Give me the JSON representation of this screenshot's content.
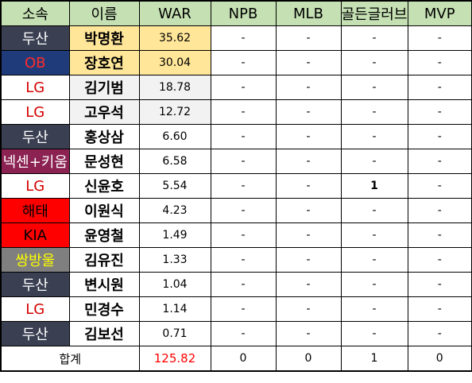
{
  "headers": [
    "소속",
    "이름",
    "WAR",
    "NPB",
    "MLB",
    "골든글러브",
    "MVP"
  ],
  "colors": {
    "header_bg": "#c5e0b3",
    "war_top_bg": "#ffe699",
    "war_light_bg": "#f2f2f2"
  },
  "rows": [
    {
      "team": "두산",
      "team_bg": "#3a3f52",
      "team_color": "#ffffff",
      "name": "박명환",
      "name_bg": "#ffe699",
      "war": "35.62",
      "war_bg": "#ffe699",
      "npb": "-",
      "mlb": "-",
      "gg": "-",
      "mvp": "-"
    },
    {
      "team": "OB",
      "team_bg": "#1f3b7a",
      "team_color": "#ff2b2b",
      "name": "장호연",
      "name_bg": "#ffe699",
      "war": "30.04",
      "war_bg": "#ffe699",
      "npb": "-",
      "mlb": "-",
      "gg": "-",
      "mvp": "-"
    },
    {
      "team": "LG",
      "team_bg": "#ffffff",
      "team_color": "#d40000",
      "name": "김기범",
      "name_bg": "#f2f2f2",
      "war": "18.78",
      "war_bg": "#f2f2f2",
      "npb": "-",
      "mlb": "-",
      "gg": "-",
      "mvp": "-"
    },
    {
      "team": "LG",
      "team_bg": "#ffffff",
      "team_color": "#d40000",
      "name": "고우석",
      "name_bg": "#f2f2f2",
      "war": "12.72",
      "war_bg": "#f2f2f2",
      "npb": "-",
      "mlb": "-",
      "gg": "-",
      "mvp": "-"
    },
    {
      "team": "두산",
      "team_bg": "#3a3f52",
      "team_color": "#ffffff",
      "name": "홍상삼",
      "name_bg": "#ffffff",
      "war": "6.60",
      "war_bg": "#ffffff",
      "npb": "-",
      "mlb": "-",
      "gg": "-",
      "mvp": "-"
    },
    {
      "team": "넥센+키움",
      "team_bg": "#8b2252",
      "team_color": "#ffffff",
      "name": "문성현",
      "name_bg": "#ffffff",
      "war": "6.58",
      "war_bg": "#ffffff",
      "npb": "-",
      "mlb": "-",
      "gg": "-",
      "mvp": "-"
    },
    {
      "team": "LG",
      "team_bg": "#ffffff",
      "team_color": "#d40000",
      "name": "신윤호",
      "name_bg": "#ffffff",
      "war": "5.54",
      "war_bg": "#ffffff",
      "npb": "-",
      "mlb": "-",
      "gg": "1",
      "gg_bold": true,
      "mvp": "-"
    },
    {
      "team": "해태",
      "team_bg": "#ff0000",
      "team_color": "#000000",
      "name": "이원식",
      "name_bg": "#ffffff",
      "war": "4.23",
      "war_bg": "#ffffff",
      "npb": "-",
      "mlb": "-",
      "gg": "-",
      "mvp": "-"
    },
    {
      "team": "KIA",
      "team_bg": "#ff0000",
      "team_color": "#000000",
      "name": "윤영철",
      "name_bg": "#ffffff",
      "war": "1.49",
      "war_bg": "#ffffff",
      "npb": "-",
      "mlb": "-",
      "gg": "-",
      "mvp": "-"
    },
    {
      "team": "쌍방울",
      "team_bg": "#7f7f7f",
      "team_color": "#ffff00",
      "name": "김유진",
      "name_bg": "#ffffff",
      "war": "1.33",
      "war_bg": "#ffffff",
      "npb": "-",
      "mlb": "-",
      "gg": "-",
      "mvp": "-"
    },
    {
      "team": "두산",
      "team_bg": "#3a3f52",
      "team_color": "#ffffff",
      "name": "변시원",
      "name_bg": "#ffffff",
      "war": "1.04",
      "war_bg": "#ffffff",
      "npb": "-",
      "mlb": "-",
      "gg": "-",
      "mvp": "-"
    },
    {
      "team": "LG",
      "team_bg": "#ffffff",
      "team_color": "#d40000",
      "name": "민경수",
      "name_bg": "#ffffff",
      "war": "1.14",
      "war_bg": "#ffffff",
      "npb": "-",
      "mlb": "-",
      "gg": "-",
      "mvp": "-"
    },
    {
      "team": "두산",
      "team_bg": "#3a3f52",
      "team_color": "#ffffff",
      "name": "김보선",
      "name_bg": "#ffffff",
      "war": "0.71",
      "war_bg": "#ffffff",
      "npb": "-",
      "mlb": "-",
      "gg": "-",
      "mvp": "-"
    }
  ],
  "total": {
    "label": "합계",
    "war": "125.82",
    "npb": "0",
    "mlb": "0",
    "gg": "1",
    "mvp": "0"
  }
}
